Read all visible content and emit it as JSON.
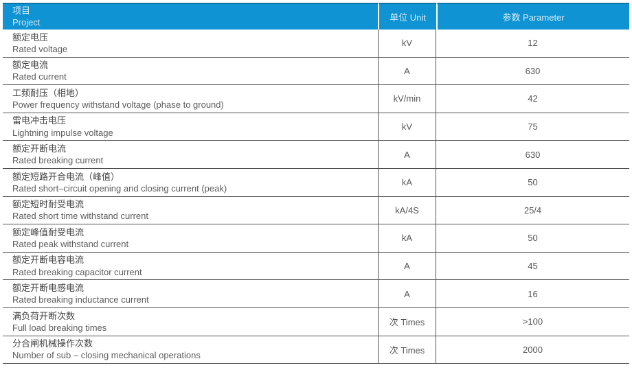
{
  "colors": {
    "header_bg": "#0f93d2",
    "header_top_edge": "#0d74a8",
    "header_text": "#d8edf9",
    "row_border": "#4f4f4f",
    "text_cn": "#454545",
    "text_en": "#5c5c5c",
    "text_value": "#565656"
  },
  "table": {
    "header": {
      "project_cn": "项目",
      "project_en": "Project",
      "unit": "单位 Unit",
      "parameter": "参数 Parameter"
    },
    "rows": [
      {
        "name_cn": "额定电压",
        "name_en": "Rated voltage",
        "unit": "kV",
        "value": "12"
      },
      {
        "name_cn": "额定电流",
        "name_en": "Rated current",
        "unit": "A",
        "value": "630"
      },
      {
        "name_cn": "工频耐压（相地）",
        "name_en": "Power frequency withstand voltage (phase to ground)",
        "unit": "kV/min",
        "value": "42"
      },
      {
        "name_cn": "雷电冲击电压",
        "name_en": "Lightning impulse voltage",
        "unit": "kV",
        "value": "75"
      },
      {
        "name_cn": "额定开断电流",
        "name_en": "Rated breaking current",
        "unit": "A",
        "value": "630"
      },
      {
        "name_cn": "额定短路开合电流（峰值）",
        "name_en": "Rated short–circuit opening and closing current (peak)",
        "unit": "kA",
        "value": "50"
      },
      {
        "name_cn": "额定短时耐受电流",
        "name_en": "Rated short time withstand current",
        "unit": "kA/4S",
        "value": "25/4"
      },
      {
        "name_cn": "额定峰值耐受电流",
        "name_en": "Rated peak withstand current",
        "unit": "kA",
        "value": "50"
      },
      {
        "name_cn": "额定开断电容电流",
        "name_en": "Rated breaking capacitor current",
        "unit": "A",
        "value": "45"
      },
      {
        "name_cn": "额定开断电感电流",
        "name_en": "Rated breaking inductance current",
        "unit": "A",
        "value": "16"
      },
      {
        "name_cn": "满负荷开断次数",
        "name_en": "Full load breaking times",
        "unit": "次 Times",
        "value": ">100"
      },
      {
        "name_cn": "分合闸机械操作次数",
        "name_en": "Number of sub – closing mechanical operations",
        "unit": "次 Times",
        "value": "2000"
      }
    ]
  }
}
